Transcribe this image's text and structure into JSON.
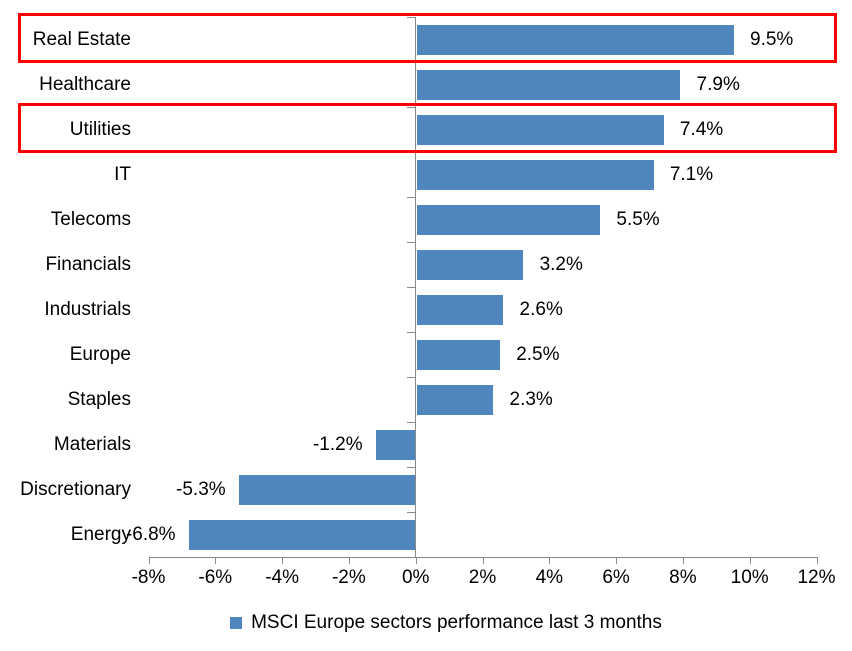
{
  "chart_data": {
    "type": "bar",
    "orientation": "horizontal",
    "legend": "MSCI Europe sectors performance last 3 months",
    "legend_position": "bottom",
    "categories": [
      "Real Estate",
      "Healthcare",
      "Utilities",
      "IT",
      "Telecoms",
      "Financials",
      "Industrials",
      "Europe",
      "Staples",
      "Materials",
      "Discretionary",
      "Energy"
    ],
    "values": [
      9.5,
      7.9,
      7.4,
      7.1,
      5.5,
      3.2,
      2.6,
      2.5,
      2.3,
      -1.2,
      -5.3,
      -6.8
    ],
    "data_labels": [
      "9.5%",
      "7.9%",
      "7.4%",
      "7.1%",
      "5.5%",
      "3.2%",
      "2.6%",
      "2.5%",
      "2.3%",
      "-1.2%",
      "-5.3%",
      "-6.8%"
    ],
    "xlim": [
      -8,
      12
    ],
    "x_tick_step": 2,
    "x_tick_labels": [
      "-8%",
      "-6%",
      "-4%",
      "-2%",
      "0%",
      "2%",
      "4%",
      "6%",
      "8%",
      "10%",
      "12%"
    ],
    "grid": false,
    "highlighted_categories": [
      "Real Estate",
      "Utilities"
    ],
    "colors": {
      "bar": "#4F86BE",
      "highlight_box": "#FE0000",
      "axis": "#898989",
      "text": "#000000",
      "background": "#FFFFFF"
    }
  }
}
